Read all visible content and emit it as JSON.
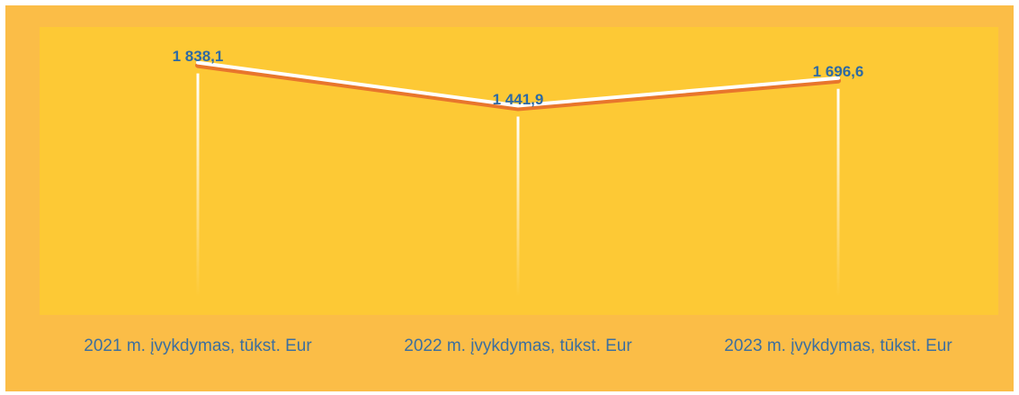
{
  "chart_data": {
    "type": "line",
    "categories": [
      "2021 m. įvykdymas, tūkst. Eur",
      "2022 m. įvykdymas, tūkst. Eur",
      "2023 m. įvykdymas, tūkst. Eur"
    ],
    "values": [
      1838.1,
      1441.9,
      1696.6
    ],
    "value_labels": [
      "1 838,1",
      "1 441,9",
      "1 696,6"
    ],
    "color": "#e8762c",
    "ylim": [
      0,
      2000
    ]
  }
}
